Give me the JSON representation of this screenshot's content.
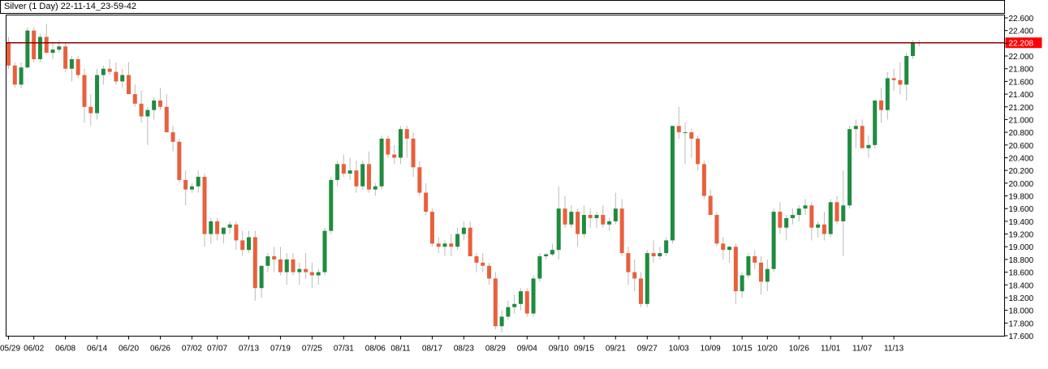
{
  "window": {
    "title": "Silver (1 Day) 22-11-14_23-59-42"
  },
  "chart_data": {
    "type": "candlestick",
    "instrument": "Silver",
    "timeframe": "1 Day",
    "ylim": [
      17.6,
      22.6
    ],
    "y_ticks": [
      "22.600",
      "22.400",
      "22.200",
      "22.000",
      "21.800",
      "21.600",
      "21.400",
      "21.200",
      "21.000",
      "20.800",
      "20.600",
      "20.400",
      "20.200",
      "20.000",
      "19.800",
      "19.600",
      "19.400",
      "19.200",
      "19.000",
      "18.800",
      "18.600",
      "18.400",
      "18.200",
      "18.000",
      "17.800",
      "17.600"
    ],
    "x_ticks": [
      "05/29",
      "06/02",
      "06/08",
      "06/14",
      "06/20",
      "06/26",
      "07/02",
      "07/07",
      "07/13",
      "07/19",
      "07/25",
      "07/31",
      "08/06",
      "08/11",
      "08/17",
      "08/23",
      "08/29",
      "09/04",
      "09/10",
      "09/15",
      "09/21",
      "09/27",
      "10/03",
      "10/09",
      "10/15",
      "10/20",
      "10/26",
      "11/01",
      "11/07",
      "11/13"
    ],
    "x_tick_bar_index": [
      0,
      4,
      9,
      14,
      19,
      24,
      29,
      33,
      38,
      43,
      48,
      53,
      58,
      62,
      67,
      72,
      77,
      82,
      87,
      91,
      96,
      101,
      106,
      111,
      116,
      120,
      125,
      130,
      135,
      140
    ],
    "current_price": {
      "value": 22.208,
      "label": "22.208",
      "line_color": "#8b0000",
      "label_bg": "#ff0000",
      "label_color": "#ffffff"
    },
    "colors": {
      "up": "#1f8b3f",
      "down": "#e8603c",
      "wick": "#bbbbbb",
      "grid": "#ffffff",
      "axis": "#000000"
    },
    "grid": false,
    "candles": [
      [
        22.22,
        22.3,
        21.8,
        21.85
      ],
      [
        21.85,
        21.9,
        21.5,
        21.55
      ],
      [
        21.55,
        21.9,
        21.5,
        21.82
      ],
      [
        21.82,
        22.45,
        21.8,
        22.4
      ],
      [
        22.4,
        22.45,
        21.9,
        21.95
      ],
      [
        21.95,
        22.35,
        21.9,
        22.3
      ],
      [
        22.3,
        22.5,
        22.05,
        22.05
      ],
      [
        22.05,
        22.2,
        21.95,
        22.1
      ],
      [
        22.1,
        22.25,
        22.05,
        22.15
      ],
      [
        22.15,
        22.2,
        21.75,
        21.8
      ],
      [
        21.8,
        22.0,
        21.6,
        21.95
      ],
      [
        21.95,
        22.0,
        21.65,
        21.7
      ],
      [
        21.7,
        21.8,
        20.95,
        21.2
      ],
      [
        21.2,
        21.4,
        20.9,
        21.1
      ],
      [
        21.1,
        21.8,
        21.0,
        21.7
      ],
      [
        21.7,
        21.85,
        21.55,
        21.8
      ],
      [
        21.8,
        21.95,
        21.7,
        21.75
      ],
      [
        21.75,
        21.9,
        21.55,
        21.6
      ],
      [
        21.6,
        21.8,
        21.5,
        21.7
      ],
      [
        21.7,
        21.9,
        21.4,
        21.4
      ],
      [
        21.4,
        21.55,
        21.2,
        21.25
      ],
      [
        21.25,
        21.45,
        20.95,
        21.05
      ],
      [
        21.05,
        21.2,
        20.6,
        21.15
      ],
      [
        21.15,
        21.35,
        21.0,
        21.3
      ],
      [
        21.3,
        21.5,
        21.15,
        21.2
      ],
      [
        21.2,
        21.4,
        20.8,
        20.8
      ],
      [
        20.8,
        20.9,
        20.5,
        20.65
      ],
      [
        20.65,
        20.7,
        20.0,
        20.05
      ],
      [
        20.05,
        20.2,
        19.65,
        19.9
      ],
      [
        19.9,
        20.0,
        19.85,
        19.95
      ],
      [
        19.95,
        20.2,
        19.85,
        20.1
      ],
      [
        20.1,
        20.15,
        19.0,
        19.2
      ],
      [
        19.2,
        19.45,
        19.05,
        19.4
      ],
      [
        19.4,
        19.45,
        19.1,
        19.2
      ],
      [
        19.2,
        19.3,
        19.05,
        19.3
      ],
      [
        19.3,
        19.4,
        19.2,
        19.35
      ],
      [
        19.35,
        19.4,
        18.95,
        19.1
      ],
      [
        19.1,
        19.25,
        18.85,
        18.95
      ],
      [
        18.95,
        19.25,
        18.9,
        19.15
      ],
      [
        19.15,
        19.25,
        18.15,
        18.35
      ],
      [
        18.35,
        18.7,
        18.2,
        18.7
      ],
      [
        18.7,
        18.9,
        18.6,
        18.85
      ],
      [
        18.85,
        19.0,
        18.6,
        18.8
      ],
      [
        18.8,
        19.0,
        18.55,
        18.6
      ],
      [
        18.6,
        18.9,
        18.4,
        18.8
      ],
      [
        18.8,
        18.9,
        18.55,
        18.6
      ],
      [
        18.6,
        18.75,
        18.4,
        18.65
      ],
      [
        18.65,
        18.9,
        18.5,
        18.6
      ],
      [
        18.6,
        18.75,
        18.35,
        18.55
      ],
      [
        18.55,
        18.65,
        18.4,
        18.6
      ],
      [
        18.6,
        19.3,
        18.55,
        19.25
      ],
      [
        19.25,
        20.1,
        19.2,
        20.05
      ],
      [
        20.05,
        20.35,
        19.95,
        20.3
      ],
      [
        20.3,
        20.45,
        20.1,
        20.15
      ],
      [
        20.15,
        20.4,
        20.05,
        20.2
      ],
      [
        20.2,
        20.35,
        19.85,
        19.95
      ],
      [
        19.95,
        20.35,
        19.9,
        20.3
      ],
      [
        20.3,
        20.5,
        19.85,
        19.9
      ],
      [
        19.9,
        20.0,
        19.8,
        19.95
      ],
      [
        19.95,
        20.75,
        19.9,
        20.7
      ],
      [
        20.7,
        20.75,
        20.4,
        20.45
      ],
      [
        20.45,
        20.6,
        20.3,
        20.4
      ],
      [
        20.4,
        20.9,
        20.3,
        20.85
      ],
      [
        20.85,
        20.9,
        20.4,
        20.7
      ],
      [
        20.7,
        20.8,
        20.1,
        20.25
      ],
      [
        20.25,
        20.35,
        19.8,
        19.85
      ],
      [
        19.85,
        20.0,
        19.5,
        19.55
      ],
      [
        19.55,
        19.6,
        19.0,
        19.05
      ],
      [
        19.05,
        19.15,
        18.9,
        19.0
      ],
      [
        19.0,
        19.1,
        18.85,
        19.05
      ],
      [
        19.05,
        19.2,
        18.85,
        19.0
      ],
      [
        19.0,
        19.3,
        18.95,
        19.2
      ],
      [
        19.2,
        19.4,
        19.1,
        19.3
      ],
      [
        19.3,
        19.4,
        18.85,
        18.85
      ],
      [
        18.85,
        18.9,
        18.6,
        18.75
      ],
      [
        18.75,
        18.9,
        18.6,
        18.7
      ],
      [
        18.7,
        18.75,
        18.4,
        18.5
      ],
      [
        18.5,
        18.6,
        17.7,
        17.75
      ],
      [
        17.75,
        18.0,
        17.65,
        17.9
      ],
      [
        17.9,
        18.15,
        17.85,
        18.05
      ],
      [
        18.05,
        18.25,
        17.95,
        18.1
      ],
      [
        18.1,
        18.35,
        18.0,
        18.3
      ],
      [
        18.3,
        18.35,
        17.9,
        17.95
      ],
      [
        17.95,
        18.55,
        17.9,
        18.5
      ],
      [
        18.5,
        18.9,
        18.45,
        18.85
      ],
      [
        18.85,
        18.9,
        18.8,
        18.88
      ],
      [
        18.88,
        19.05,
        18.85,
        18.95
      ],
      [
        18.95,
        19.95,
        18.8,
        19.6
      ],
      [
        19.6,
        19.8,
        19.3,
        19.35
      ],
      [
        19.35,
        19.65,
        19.3,
        19.55
      ],
      [
        19.55,
        19.6,
        19.0,
        19.2
      ],
      [
        19.2,
        19.65,
        19.15,
        19.5
      ],
      [
        19.5,
        19.6,
        19.3,
        19.45
      ],
      [
        19.45,
        19.55,
        19.3,
        19.5
      ],
      [
        19.5,
        19.65,
        19.3,
        19.35
      ],
      [
        19.35,
        19.45,
        19.25,
        19.4
      ],
      [
        19.4,
        19.85,
        19.35,
        19.6
      ],
      [
        19.6,
        19.75,
        18.85,
        18.9
      ],
      [
        18.9,
        19.0,
        18.4,
        18.6
      ],
      [
        18.6,
        18.8,
        18.3,
        18.5
      ],
      [
        18.5,
        18.6,
        18.05,
        18.1
      ],
      [
        18.1,
        18.95,
        18.05,
        18.9
      ],
      [
        18.9,
        19.1,
        18.75,
        18.85
      ],
      [
        18.85,
        19.0,
        18.8,
        18.9
      ],
      [
        18.9,
        19.15,
        18.85,
        19.1
      ],
      [
        19.1,
        20.9,
        19.05,
        20.9
      ],
      [
        20.9,
        21.2,
        20.7,
        20.8
      ],
      [
        20.8,
        20.95,
        20.3,
        20.8
      ],
      [
        20.8,
        20.85,
        20.4,
        20.7
      ],
      [
        20.7,
        20.75,
        20.2,
        20.3
      ],
      [
        20.3,
        20.35,
        19.75,
        19.8
      ],
      [
        19.8,
        19.9,
        19.5,
        19.5
      ],
      [
        19.5,
        19.55,
        19.0,
        19.05
      ],
      [
        19.05,
        19.15,
        18.8,
        18.95
      ],
      [
        18.95,
        19.0,
        18.75,
        19.0
      ],
      [
        19.0,
        19.05,
        18.1,
        18.3
      ],
      [
        18.3,
        18.6,
        18.2,
        18.55
      ],
      [
        18.55,
        18.9,
        18.5,
        18.85
      ],
      [
        18.85,
        18.95,
        18.65,
        18.75
      ],
      [
        18.75,
        18.85,
        18.25,
        18.45
      ],
      [
        18.45,
        18.8,
        18.3,
        18.65
      ],
      [
        18.65,
        19.6,
        18.6,
        19.55
      ],
      [
        19.55,
        19.7,
        19.2,
        19.3
      ],
      [
        19.3,
        19.5,
        19.1,
        19.45
      ],
      [
        19.45,
        19.6,
        19.35,
        19.5
      ],
      [
        19.5,
        19.65,
        19.4,
        19.6
      ],
      [
        19.6,
        19.75,
        19.5,
        19.65
      ],
      [
        19.65,
        19.7,
        19.1,
        19.3
      ],
      [
        19.3,
        19.4,
        19.15,
        19.35
      ],
      [
        19.35,
        19.55,
        19.1,
        19.2
      ],
      [
        19.2,
        19.75,
        19.15,
        19.7
      ],
      [
        19.7,
        19.8,
        19.35,
        19.4
      ],
      [
        19.4,
        20.2,
        18.85,
        19.65
      ],
      [
        19.65,
        20.9,
        19.6,
        20.85
      ],
      [
        20.85,
        21.0,
        20.55,
        20.9
      ],
      [
        20.9,
        21.0,
        20.55,
        20.55
      ],
      [
        20.55,
        20.75,
        20.4,
        20.6
      ],
      [
        20.6,
        21.3,
        20.55,
        21.3
      ],
      [
        21.3,
        21.5,
        20.95,
        21.15
      ],
      [
        21.15,
        21.75,
        21.0,
        21.65
      ],
      [
        21.65,
        21.8,
        21.45,
        21.62
      ],
      [
        21.62,
        21.9,
        21.4,
        21.55
      ],
      [
        21.55,
        22.05,
        21.3,
        22.0
      ],
      [
        22.0,
        22.25,
        21.95,
        22.2
      ],
      [
        22.2,
        22.25,
        22.15,
        22.21
      ]
    ]
  }
}
